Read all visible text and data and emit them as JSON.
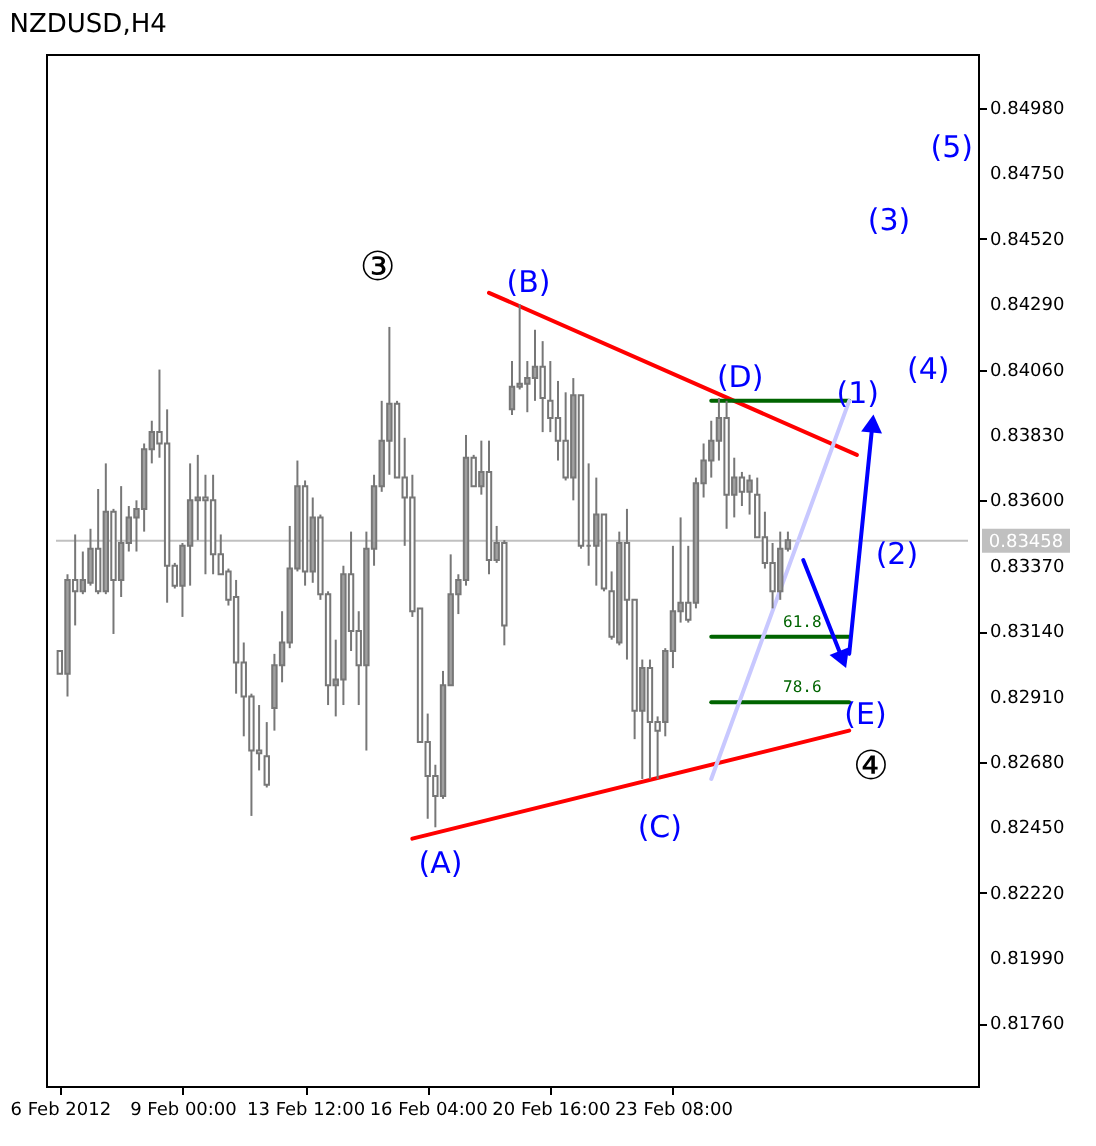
{
  "chart_data": {
    "type": "candlestick",
    "title": "NZDUSD,H4",
    "color": "#777777",
    "categories": [
      "6 Feb 2012",
      null,
      null,
      null,
      null,
      null,
      null,
      null,
      null,
      null,
      null,
      null,
      null,
      null,
      null,
      null,
      "9 Feb 00:00",
      null,
      null,
      null,
      null,
      null,
      null,
      null,
      null,
      null,
      null,
      null,
      null,
      null,
      null,
      null,
      "13 Feb 12:00",
      null,
      null,
      null,
      null,
      null,
      null,
      null,
      null,
      null,
      null,
      null,
      null,
      null,
      null,
      null,
      "16 Feb 04:00",
      null,
      null,
      null,
      null,
      null,
      null,
      null,
      null,
      null,
      null,
      null,
      null,
      null,
      null,
      null,
      "20 Feb 16:00",
      null,
      null,
      null,
      null,
      null,
      null,
      null,
      null,
      null,
      null,
      null,
      null,
      null,
      null,
      null,
      "23 Feb 08:00",
      null,
      null,
      null,
      null,
      null,
      null,
      null,
      null,
      null,
      null,
      null,
      null,
      null,
      null,
      null,
      null,
      null,
      null,
      null,
      null,
      null,
      null,
      null,
      null,
      null,
      null,
      null,
      null,
      null,
      null,
      null,
      null,
      null,
      null,
      null,
      null,
      null,
      null
    ],
    "ohlc": [
      [
        0.8307,
        0.8307,
        0.8299,
        0.8299
      ],
      [
        0.8299,
        0.8334,
        0.8291,
        0.8332
      ],
      [
        0.8332,
        0.8348,
        0.8316,
        0.8328
      ],
      [
        0.8328,
        0.8342,
        0.8327,
        0.8332
      ],
      [
        0.8331,
        0.835,
        0.833,
        0.8343
      ],
      [
        0.8343,
        0.8364,
        0.8327,
        0.8328
      ],
      [
        0.8328,
        0.8373,
        0.8327,
        0.8356
      ],
      [
        0.8356,
        0.8357,
        0.8313,
        0.8332
      ],
      [
        0.8332,
        0.8365,
        0.8326,
        0.8345
      ],
      [
        0.8345,
        0.8358,
        0.8342,
        0.8354
      ],
      [
        0.8354,
        0.836,
        0.8342,
        0.8357
      ],
      [
        0.8357,
        0.838,
        0.8349,
        0.8378
      ],
      [
        0.8378,
        0.8388,
        0.8373,
        0.8384
      ],
      [
        0.8384,
        0.8406,
        0.8375,
        0.838
      ],
      [
        0.838,
        0.8392,
        0.8324,
        0.8337
      ],
      [
        0.8337,
        0.8338,
        0.8329,
        0.833
      ],
      [
        0.833,
        0.8345,
        0.8319,
        0.8344
      ],
      [
        0.8344,
        0.8373,
        0.833,
        0.836
      ],
      [
        0.836,
        0.8376,
        0.8346,
        0.8361
      ],
      [
        0.8361,
        0.8369,
        0.8334,
        0.836
      ],
      [
        0.836,
        0.8369,
        0.8334,
        0.8341
      ],
      [
        0.8341,
        0.8348,
        0.8334,
        0.8334
      ],
      [
        0.8335,
        0.8336,
        0.8323,
        0.8325
      ],
      [
        0.8326,
        0.8332,
        0.8292,
        0.8303
      ],
      [
        0.8303,
        0.831,
        0.8277,
        0.8291
      ],
      [
        0.8291,
        0.8292,
        0.8249,
        0.8272
      ],
      [
        0.8272,
        0.8288,
        0.8265,
        0.8271
      ],
      [
        0.827,
        0.8282,
        0.8259,
        0.826
      ],
      [
        0.8287,
        0.8306,
        0.8279,
        0.8302
      ],
      [
        0.8302,
        0.8321,
        0.8296,
        0.831
      ],
      [
        0.831,
        0.8351,
        0.8308,
        0.8336
      ],
      [
        0.8336,
        0.8374,
        0.8335,
        0.8365
      ],
      [
        0.8365,
        0.8367,
        0.833,
        0.8335
      ],
      [
        0.8335,
        0.8361,
        0.8331,
        0.8354
      ],
      [
        0.8354,
        0.8355,
        0.8325,
        0.8327
      ],
      [
        0.8327,
        0.8328,
        0.8288,
        0.8295
      ],
      [
        0.8295,
        0.8311,
        0.8284,
        0.8297
      ],
      [
        0.8297,
        0.8337,
        0.8288,
        0.8334
      ],
      [
        0.8334,
        0.8349,
        0.8307,
        0.8314
      ],
      [
        0.8314,
        0.8321,
        0.8288,
        0.8302
      ],
      [
        0.8302,
        0.8349,
        0.8272,
        0.8343
      ],
      [
        0.8343,
        0.8369,
        0.8337,
        0.8365
      ],
      [
        0.8365,
        0.8395,
        0.8363,
        0.8381
      ],
      [
        0.8381,
        0.8421,
        0.8369,
        0.8394
      ],
      [
        0.8394,
        0.8395,
        0.8368,
        0.8368
      ],
      [
        0.8368,
        0.8382,
        0.8344,
        0.8361
      ],
      [
        0.8361,
        0.8369,
        0.8319,
        0.8321
      ],
      [
        0.8322,
        0.8322,
        0.8275,
        0.8275
      ],
      [
        0.8275,
        0.8285,
        0.8248,
        0.8263
      ],
      [
        0.8263,
        0.8267,
        0.8245,
        0.8256
      ],
      [
        0.8256,
        0.83,
        0.8255,
        0.8295
      ],
      [
        0.8295,
        0.8341,
        0.8295,
        0.8327
      ],
      [
        0.8327,
        0.8334,
        0.832,
        0.8332
      ],
      [
        0.8332,
        0.8383,
        0.833,
        0.8375
      ],
      [
        0.8375,
        0.8376,
        0.8365,
        0.8365
      ],
      [
        0.8365,
        0.8381,
        0.8362,
        0.837
      ],
      [
        0.837,
        0.8381,
        0.8334,
        0.8339
      ],
      [
        0.8339,
        0.8351,
        0.8338,
        0.8345
      ],
      [
        0.8345,
        0.8346,
        0.8309,
        0.8316
      ],
      [
        0.8392,
        0.8409,
        0.839,
        0.84
      ],
      [
        0.84,
        0.8429,
        0.8399,
        0.8401
      ],
      [
        0.8401,
        0.8409,
        0.8391,
        0.8403
      ],
      [
        0.8403,
        0.842,
        0.8395,
        0.8407
      ],
      [
        0.8407,
        0.8416,
        0.8384,
        0.8396
      ],
      [
        0.8395,
        0.8409,
        0.8384,
        0.8389
      ],
      [
        0.8389,
        0.8402,
        0.8374,
        0.8381
      ],
      [
        0.8381,
        0.8398,
        0.8367,
        0.8368
      ],
      [
        0.8368,
        0.8403,
        0.836,
        0.8397
      ],
      [
        0.8397,
        0.8397,
        0.8343,
        0.8344
      ],
      [
        0.8344,
        0.8373,
        0.8337,
        0.8344
      ],
      [
        0.8344,
        0.8368,
        0.833,
        0.8355
      ],
      [
        0.8355,
        0.8355,
        0.8328,
        0.8329
      ],
      [
        0.8328,
        0.8335,
        0.8311,
        0.8312
      ],
      [
        0.831,
        0.8349,
        0.8309,
        0.8345
      ],
      [
        0.8345,
        0.8357,
        0.8304,
        0.8325
      ],
      [
        0.8325,
        0.8325,
        0.8276,
        0.8286
      ],
      [
        0.8286,
        0.8304,
        0.8262,
        0.8301
      ],
      [
        0.8301,
        0.8304,
        0.8262,
        0.8282
      ],
      [
        0.8282,
        0.8284,
        0.8262,
        0.8279
      ],
      [
        0.8282,
        0.8308,
        0.8277,
        0.8307
      ],
      [
        0.8307,
        0.8344,
        0.8301,
        0.8321
      ],
      [
        0.8321,
        0.8354,
        0.8317,
        0.8324
      ],
      [
        0.8324,
        0.8344,
        0.8317,
        0.8318
      ],
      [
        0.8324,
        0.8368,
        0.8322,
        0.8366
      ],
      [
        0.8366,
        0.838,
        0.8361,
        0.8374
      ],
      [
        0.8374,
        0.8388,
        0.8368,
        0.8381
      ],
      [
        0.8381,
        0.8396,
        0.8374,
        0.8389
      ],
      [
        0.8389,
        0.8395,
        0.835,
        0.8362
      ],
      [
        0.8362,
        0.8375,
        0.8354,
        0.8368
      ],
      [
        0.8368,
        0.837,
        0.8358,
        0.8363
      ],
      [
        0.8363,
        0.8369,
        0.8355,
        0.8367
      ],
      [
        0.8362,
        0.8368,
        0.8347,
        0.8347
      ],
      [
        0.8347,
        0.8356,
        0.8336,
        0.8338
      ],
      [
        0.8338,
        0.8345,
        0.8322,
        0.8328
      ],
      [
        0.8328,
        0.8349,
        0.8325,
        0.8343
      ],
      [
        0.8343,
        0.8349,
        0.8342,
        0.8346
      ],
      null,
      null,
      null,
      null,
      null,
      null,
      null,
      null,
      null,
      null,
      null,
      null,
      null,
      null,
      null,
      null,
      null,
      null,
      null,
      null,
      null,
      null,
      null
    ],
    "colors": [
      "#ffffff",
      "#a0a0a0",
      "#ffffff",
      "#a0a0a0",
      "#a0a0a0",
      "#ffffff",
      "#a0a0a0",
      "#ffffff",
      "#a0a0a0",
      "#a0a0a0",
      "#a0a0a0",
      "#a0a0a0",
      "#a0a0a0",
      "#ffffff",
      "#ffffff",
      "#ffffff",
      "#a0a0a0",
      "#a0a0a0",
      "#a0a0a0",
      "#ffffff",
      "#ffffff",
      "#ffffff",
      "#ffffff",
      "#ffffff",
      "#ffffff",
      "#ffffff",
      "#ffffff",
      "#ffffff",
      "#a0a0a0",
      "#a0a0a0",
      "#a0a0a0",
      "#a0a0a0",
      "#ffffff",
      "#a0a0a0",
      "#ffffff",
      "#ffffff",
      "#a0a0a0",
      "#a0a0a0",
      "#ffffff",
      "#ffffff",
      "#a0a0a0",
      "#a0a0a0",
      "#a0a0a0",
      "#a0a0a0",
      "#ffffff",
      "#ffffff",
      "#ffffff",
      "#ffffff",
      "#ffffff",
      "#ffffff",
      "#a0a0a0",
      "#a0a0a0",
      "#a0a0a0",
      "#a0a0a0",
      "#ffffff",
      "#a0a0a0",
      "#ffffff",
      "#a0a0a0",
      "#ffffff",
      "#a0a0a0",
      "#a0a0a0",
      "#a0a0a0",
      "#a0a0a0",
      "#ffffff",
      "#ffffff",
      "#ffffff",
      "#ffffff",
      "#a0a0a0",
      "#ffffff",
      "#777777",
      "#a0a0a0",
      "#ffffff",
      "#ffffff",
      "#a0a0a0",
      "#ffffff",
      "#ffffff",
      "#a0a0a0",
      "#ffffff",
      "#ffffff",
      "#a0a0a0",
      "#a0a0a0",
      "#a0a0a0",
      "#ffffff",
      "#a0a0a0",
      "#a0a0a0",
      "#a0a0a0",
      "#a0a0a0",
      "#ffffff",
      "#a0a0a0",
      "#ffffff",
      "#a0a0a0",
      "#ffffff",
      "#ffffff",
      "#ffffff",
      "#a0a0a0",
      "#a0a0a0",
      null,
      null,
      null,
      null,
      null,
      null,
      null,
      null,
      null,
      null,
      null,
      null,
      null,
      null,
      null,
      null,
      null,
      null,
      null,
      null,
      null,
      null,
      null
    ],
    "series": [
      {
        "type": "line",
        "color": "#ff0000",
        "values": [
          null,
          null,
          null,
          null,
          null,
          null,
          null,
          null,
          null,
          null,
          null,
          null,
          null,
          null,
          null,
          null,
          null,
          null,
          null,
          null,
          null,
          null,
          null,
          null,
          null,
          null,
          null,
          null,
          null,
          null,
          null,
          null,
          null,
          null,
          null,
          null,
          null,
          null,
          null,
          null,
          null,
          null,
          null,
          null,
          null,
          null,
          null,
          null,
          null,
          null,
          null,
          null,
          null,
          null,
          null,
          null,
          0.8433,
          null,
          null,
          null,
          null,
          null,
          null,
          null,
          null,
          null,
          null,
          null,
          null,
          null,
          null,
          null,
          null,
          null,
          null,
          null,
          null,
          null,
          null,
          null,
          null,
          null,
          null,
          null,
          null,
          null,
          null,
          null,
          null,
          null,
          null,
          null,
          null,
          null,
          null,
          null,
          null,
          null,
          null,
          null,
          null,
          null,
          null,
          null,
          0.8376,
          null,
          null,
          null,
          null,
          null,
          null,
          null,
          null,
          null,
          null,
          null,
          null,
          null,
          null
        ]
      },
      {
        "type": "line",
        "color": "#ff0000",
        "values": [
          null,
          null,
          null,
          null,
          null,
          null,
          null,
          null,
          null,
          null,
          null,
          null,
          null,
          null,
          null,
          null,
          null,
          null,
          null,
          null,
          null,
          null,
          null,
          null,
          null,
          null,
          null,
          null,
          null,
          null,
          null,
          null,
          null,
          null,
          null,
          null,
          null,
          null,
          null,
          null,
          null,
          null,
          null,
          null,
          null,
          null,
          0.8241,
          null,
          null,
          null,
          null,
          null,
          null,
          null,
          null,
          null,
          null,
          null,
          null,
          null,
          null,
          null,
          null,
          null,
          null,
          null,
          null,
          null,
          null,
          null,
          null,
          null,
          null,
          null,
          null,
          null,
          null,
          null,
          null,
          null,
          null,
          null,
          null,
          null,
          null,
          null,
          null,
          null,
          null,
          null,
          null,
          null,
          null,
          null,
          null,
          null,
          null,
          null,
          null,
          null,
          null,
          null,
          null,
          0.8279,
          null,
          null,
          null,
          null,
          null,
          null,
          null,
          null,
          null,
          null,
          null,
          null,
          null,
          null,
          null
        ]
      },
      {
        "type": "line",
        "color": "#006400",
        "values": [
          null,
          null,
          null,
          null,
          null,
          null,
          null,
          null,
          null,
          null,
          null,
          null,
          null,
          null,
          null,
          null,
          null,
          null,
          null,
          null,
          null,
          null,
          null,
          null,
          null,
          null,
          null,
          null,
          null,
          null,
          null,
          null,
          null,
          null,
          null,
          null,
          null,
          null,
          null,
          null,
          null,
          null,
          null,
          null,
          null,
          null,
          null,
          null,
          null,
          null,
          null,
          null,
          null,
          null,
          null,
          null,
          null,
          null,
          null,
          null,
          null,
          null,
          null,
          null,
          null,
          null,
          null,
          null,
          null,
          null,
          null,
          null,
          null,
          null,
          null,
          null,
          null,
          null,
          null,
          null,
          null,
          null,
          null,
          null,
          null,
          0.8395,
          null,
          null,
          null,
          null,
          null,
          null,
          null,
          null,
          null,
          null,
          null,
          null,
          null,
          null,
          null,
          null,
          null,
          0.8395,
          null,
          null,
          null,
          null,
          null,
          null,
          null,
          null,
          null,
          null,
          null,
          null,
          null,
          null,
          null
        ]
      },
      {
        "name": "61.8",
        "type": "line",
        "color": "#006400",
        "values": [
          null,
          null,
          null,
          null,
          null,
          null,
          null,
          null,
          null,
          null,
          null,
          null,
          null,
          null,
          null,
          null,
          null,
          null,
          null,
          null,
          null,
          null,
          null,
          null,
          null,
          null,
          null,
          null,
          null,
          null,
          null,
          null,
          null,
          null,
          null,
          null,
          null,
          null,
          null,
          null,
          null,
          null,
          null,
          null,
          null,
          null,
          null,
          null,
          null,
          null,
          null,
          null,
          null,
          null,
          null,
          null,
          null,
          null,
          null,
          null,
          null,
          null,
          null,
          null,
          null,
          null,
          null,
          null,
          null,
          null,
          null,
          null,
          null,
          null,
          null,
          null,
          null,
          null,
          null,
          null,
          null,
          null,
          null,
          null,
          null,
          0.8312,
          null,
          null,
          null,
          null,
          null,
          null,
          null,
          null,
          null,
          null,
          null,
          null,
          null,
          null,
          null,
          null,
          null,
          0.8312,
          null,
          null,
          null,
          null,
          null,
          null,
          null,
          null,
          null,
          null,
          null,
          null,
          null,
          null,
          null
        ]
      },
      {
        "name": "78.6",
        "type": "line",
        "color": "#006400",
        "values": [
          null,
          null,
          null,
          null,
          null,
          null,
          null,
          null,
          null,
          null,
          null,
          null,
          null,
          null,
          null,
          null,
          null,
          null,
          null,
          null,
          null,
          null,
          null,
          null,
          null,
          null,
          null,
          null,
          null,
          null,
          null,
          null,
          null,
          null,
          null,
          null,
          null,
          null,
          null,
          null,
          null,
          null,
          null,
          null,
          null,
          null,
          null,
          null,
          null,
          null,
          null,
          null,
          null,
          null,
          null,
          null,
          null,
          null,
          null,
          null,
          null,
          null,
          null,
          null,
          null,
          null,
          null,
          null,
          null,
          null,
          null,
          null,
          null,
          null,
          null,
          null,
          null,
          null,
          null,
          null,
          null,
          null,
          null,
          null,
          null,
          0.8289,
          null,
          null,
          null,
          null,
          null,
          null,
          null,
          null,
          null,
          null,
          null,
          null,
          null,
          null,
          null,
          null,
          null,
          0.8289,
          null,
          null,
          null,
          null,
          null,
          null,
          null,
          null,
          null,
          null,
          null,
          null,
          null,
          null,
          null
        ]
      },
      {
        "type": "line",
        "color": "#c8c8ff",
        "values": [
          null,
          null,
          null,
          null,
          null,
          null,
          null,
          null,
          null,
          null,
          null,
          null,
          null,
          null,
          null,
          null,
          null,
          null,
          null,
          null,
          null,
          null,
          null,
          null,
          null,
          null,
          null,
          null,
          null,
          null,
          null,
          null,
          null,
          null,
          null,
          null,
          null,
          null,
          null,
          null,
          null,
          null,
          null,
          null,
          null,
          null,
          null,
          null,
          null,
          null,
          null,
          null,
          null,
          null,
          null,
          null,
          null,
          null,
          null,
          null,
          null,
          null,
          null,
          null,
          null,
          null,
          null,
          null,
          null,
          null,
          null,
          null,
          null,
          null,
          null,
          null,
          null,
          null,
          null,
          null,
          null,
          null,
          null,
          null,
          null,
          0.8262,
          null,
          null,
          null,
          null,
          null,
          null,
          null,
          null,
          null,
          null,
          null,
          null,
          null,
          null,
          null,
          null,
          null,
          0.8395,
          null,
          null,
          null,
          null,
          null,
          null,
          null,
          null,
          null,
          null,
          null,
          null,
          null,
          null,
          null
        ]
      },
      {
        "type": "line",
        "color": "#0000ff",
        "marker": "triangle",
        "values": [
          null,
          null,
          null,
          null,
          null,
          null,
          null,
          null,
          null,
          null,
          null,
          null,
          null,
          null,
          null,
          null,
          null,
          null,
          null,
          null,
          null,
          null,
          null,
          null,
          null,
          null,
          null,
          null,
          null,
          null,
          null,
          null,
          null,
          null,
          null,
          null,
          null,
          null,
          null,
          null,
          null,
          null,
          null,
          null,
          null,
          null,
          null,
          null,
          null,
          null,
          null,
          null,
          null,
          null,
          null,
          null,
          null,
          null,
          null,
          null,
          null,
          null,
          null,
          null,
          null,
          null,
          null,
          null,
          null,
          null,
          null,
          null,
          null,
          null,
          null,
          null,
          null,
          null,
          null,
          null,
          null,
          null,
          null,
          null,
          null,
          null,
          null,
          null,
          null,
          null,
          null,
          null,
          null,
          null,
          null,
          null,
          null,
          0.8339,
          null,
          null,
          null,
          null,
          0.8305,
          null,
          null,
          null,
          null,
          null,
          null,
          null,
          null,
          null,
          null,
          null,
          null,
          null,
          null,
          null,
          null
        ]
      },
      {
        "type": "line",
        "color": "#0000ff",
        "marker": "triangle",
        "values": [
          null,
          null,
          null,
          null,
          null,
          null,
          null,
          null,
          null,
          null,
          null,
          null,
          null,
          null,
          null,
          null,
          null,
          null,
          null,
          null,
          null,
          null,
          null,
          null,
          null,
          null,
          null,
          null,
          null,
          null,
          null,
          null,
          null,
          null,
          null,
          null,
          null,
          null,
          null,
          null,
          null,
          null,
          null,
          null,
          null,
          null,
          null,
          null,
          null,
          null,
          null,
          null,
          null,
          null,
          null,
          null,
          null,
          null,
          null,
          null,
          null,
          null,
          null,
          null,
          null,
          null,
          null,
          null,
          null,
          null,
          null,
          null,
          null,
          null,
          null,
          null,
          null,
          null,
          null,
          null,
          null,
          null,
          null,
          null,
          null,
          null,
          null,
          null,
          null,
          null,
          null,
          null,
          null,
          null,
          null,
          null,
          null,
          null,
          null,
          null,
          null,
          null,
          null,
          0.8306,
          null,
          null,
          0.8386,
          null,
          null,
          null,
          null,
          null,
          null,
          null,
          null,
          null,
          null,
          null,
          null
        ]
      }
    ],
    "ref_lines": [
      {
        "axis": "y",
        "value": 0.83458,
        "label": "0.83458",
        "color": "#c0c0c0"
      }
    ],
    "annotations": [
      "③",
      "(B)",
      "(D)",
      "(1)",
      "(4)",
      "(3)",
      "(5)",
      "(2)",
      "(A)",
      "(C)",
      "(E)",
      "④"
    ],
    "ylim": [
      0.8154,
      0.8517
    ],
    "yticks": [
      {
        "value": 0.8498,
        "label": "0.84980"
      },
      {
        "value": 0.8475,
        "label": "0.84750"
      },
      {
        "value": 0.8452,
        "label": "0.84520"
      },
      {
        "value": 0.8429,
        "label": "0.84290"
      },
      {
        "value": 0.8406,
        "label": "0.84060"
      },
      {
        "value": 0.8383,
        "label": "0.83830"
      },
      {
        "value": 0.836,
        "label": "0.83600"
      },
      {
        "value": 0.8337,
        "label": "0.83370"
      },
      {
        "value": 0.8314,
        "label": "0.83140"
      },
      {
        "value": 0.8291,
        "label": "0.82910"
      },
      {
        "value": 0.8268,
        "label": "0.82680"
      },
      {
        "value": 0.8245,
        "label": "0.82450"
      },
      {
        "value": 0.8222,
        "label": "0.82220"
      },
      {
        "value": 0.8199,
        "label": "0.81990"
      },
      {
        "value": 0.8176,
        "label": "0.81760"
      }
    ]
  }
}
